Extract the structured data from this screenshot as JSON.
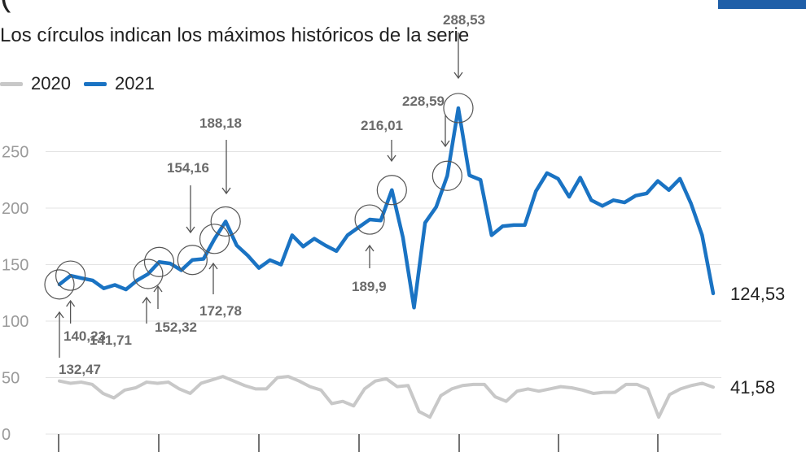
{
  "header": {
    "partial_title": "(",
    "subtitle": "Los círculos indican los máximos históricos de la serie"
  },
  "chart_data": {
    "type": "line",
    "subtitle": "Los círculos indican los máximos históricos de la serie",
    "ylim": [
      0,
      290
    ],
    "yticks": [
      0,
      50,
      100,
      150,
      200,
      250
    ],
    "ytick_labels": [
      "0",
      "50",
      "100",
      "150",
      "200",
      "250"
    ],
    "grid": true,
    "legend_position": "top-left",
    "series": [
      {
        "name": "2020",
        "color": "#c8c8c8",
        "values": [
          47,
          45,
          46,
          44,
          36,
          32,
          39,
          41,
          46,
          45,
          46,
          40,
          36,
          45,
          48,
          51,
          47,
          43,
          40,
          40,
          50,
          51,
          47,
          42,
          39,
          27,
          29,
          25,
          40,
          47,
          49,
          42,
          43,
          20,
          15,
          34,
          40,
          43,
          44,
          44,
          33,
          29,
          38,
          40,
          38,
          40,
          42,
          41,
          39,
          36,
          37,
          37,
          44,
          44,
          40,
          15,
          35,
          40,
          43,
          45,
          41.58
        ],
        "end_label": "41,58"
      },
      {
        "name": "2021",
        "color": "#1a73c3",
        "values": [
          132.47,
          140.23,
          138,
          136,
          129,
          132,
          128,
          136,
          141.71,
          152.32,
          151,
          145,
          154.16,
          155,
          172.78,
          188.18,
          167,
          158,
          147,
          154,
          150,
          176,
          166,
          173,
          167,
          162,
          176,
          183,
          189.9,
          189,
          216.01,
          174,
          112,
          187,
          201,
          228.59,
          288.53,
          229,
          225,
          176,
          184,
          185,
          185,
          215,
          231,
          226,
          210,
          227,
          207,
          202,
          207,
          205,
          211,
          213,
          224,
          216,
          226,
          204,
          176,
          124.53
        ],
        "end_label": "124,53"
      }
    ],
    "annotations": [
      {
        "label": "132,47",
        "index": 0
      },
      {
        "label": "140,23",
        "index": 1
      },
      {
        "label": "141,71",
        "index": 8
      },
      {
        "label": "152,32",
        "index": 9
      },
      {
        "label": "154,16",
        "index": 12
      },
      {
        "label": "172,78",
        "index": 14
      },
      {
        "label": "188,18",
        "index": 15
      },
      {
        "label": "189,9",
        "index": 28
      },
      {
        "label": "216,01",
        "index": 30
      },
      {
        "label": "228,59",
        "index": 35
      },
      {
        "label": "288,53",
        "index": 36
      }
    ]
  }
}
